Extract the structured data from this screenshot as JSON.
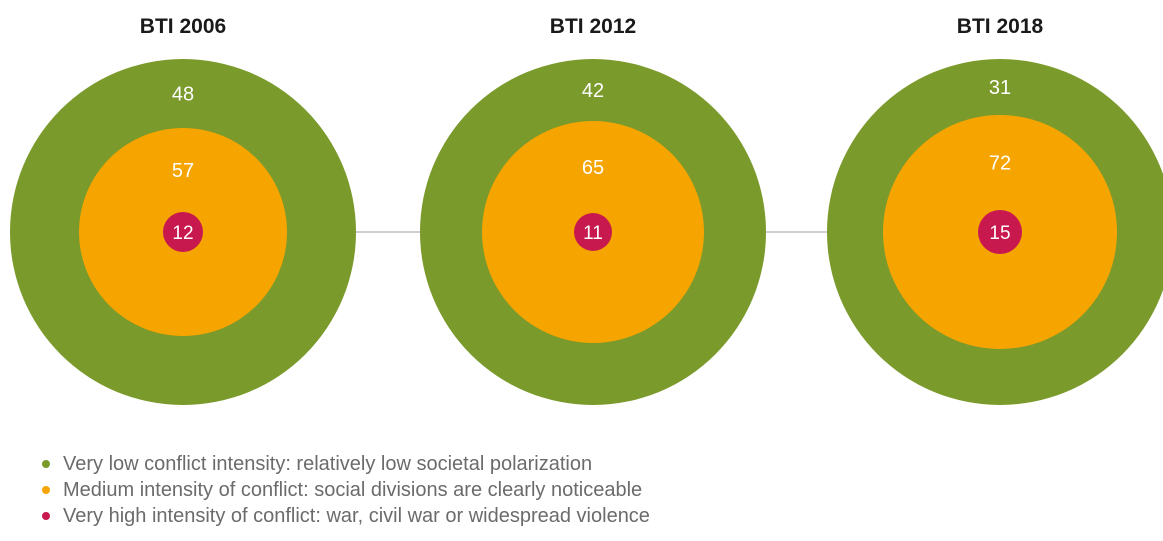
{
  "chart_data": {
    "type": "nested-circles",
    "colors": {
      "very_low": "#7a9a2b",
      "medium": "#f5a400",
      "very_high": "#c8194f",
      "connector": "#d0d0d0"
    },
    "panels": [
      {
        "title": "BTI 2006",
        "very_low": 48,
        "medium": 57,
        "very_high": 12
      },
      {
        "title": "BTI 2012",
        "very_low": 42,
        "medium": 65,
        "very_high": 11
      },
      {
        "title": "BTI 2018",
        "very_low": 31,
        "medium": 72,
        "very_high": 15
      }
    ],
    "legend": [
      {
        "key": "very_low",
        "label": "Very low conflict intensity: relatively low societal polarization"
      },
      {
        "key": "medium",
        "label": "Medium intensity of conflict: social divisions are clearly noticeable"
      },
      {
        "key": "very_high",
        "label": "Very high intensity of conflict: war, civil war or widespread violence"
      }
    ]
  }
}
